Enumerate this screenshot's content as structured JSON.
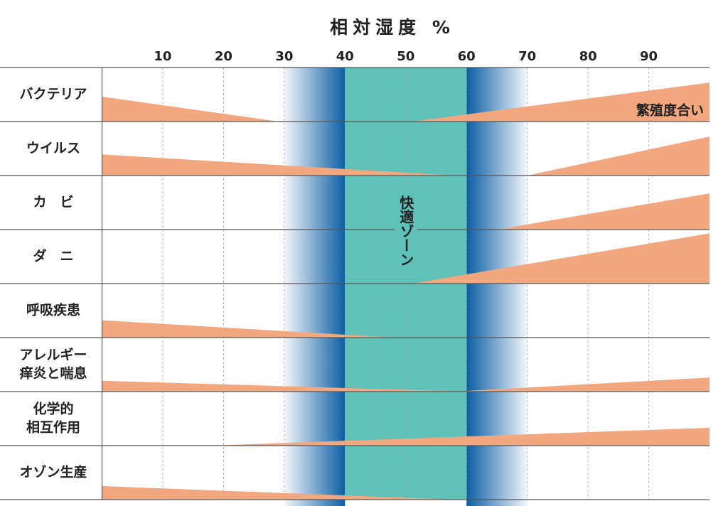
{
  "chart_data": {
    "type": "wedge",
    "title": "相対湿度 %",
    "annotation": "繁殖度合い",
    "zone_label": "快適ゾーン",
    "xlim": [
      0,
      100
    ],
    "xticks": [
      10,
      20,
      30,
      40,
      50,
      60,
      70,
      80,
      90
    ],
    "grid": true,
    "zone": [
      40,
      60
    ],
    "zone_color": "#5fc1b8",
    "buffer": [
      30,
      70
    ],
    "buffer_color": "#0b5ea4",
    "color": "#f2a77e",
    "rows": [
      {
        "label": [
          "バクテリア"
        ],
        "left": {
          "end": 29,
          "height": 46
        },
        "right": {
          "start": 51,
          "height": 72
        }
      },
      {
        "label": [
          "ウイルス"
        ],
        "left": {
          "end": 58,
          "height": 39
        },
        "right": {
          "start": 70,
          "height": 72
        }
      },
      {
        "label": [
          "カ　ビ"
        ],
        "right": {
          "start": 65,
          "height": 67
        }
      },
      {
        "label": [
          "ダ　ニ"
        ],
        "right": {
          "start": 51,
          "height": 93
        }
      },
      {
        "label": [
          "呼吸疾患"
        ],
        "left": {
          "end": 48,
          "height": 32
        }
      },
      {
        "label": [
          "アレルギー",
          "痒炎と喘息"
        ],
        "left": {
          "end": 60,
          "height": 20
        },
        "right": {
          "start": 58,
          "height": 26
        }
      },
      {
        "label": [
          "化学的",
          "相互作用"
        ],
        "right": {
          "start": 18,
          "height": 33
        }
      },
      {
        "label": [
          "オゾン生産"
        ],
        "left": {
          "end": 58,
          "height": 25
        }
      }
    ]
  }
}
